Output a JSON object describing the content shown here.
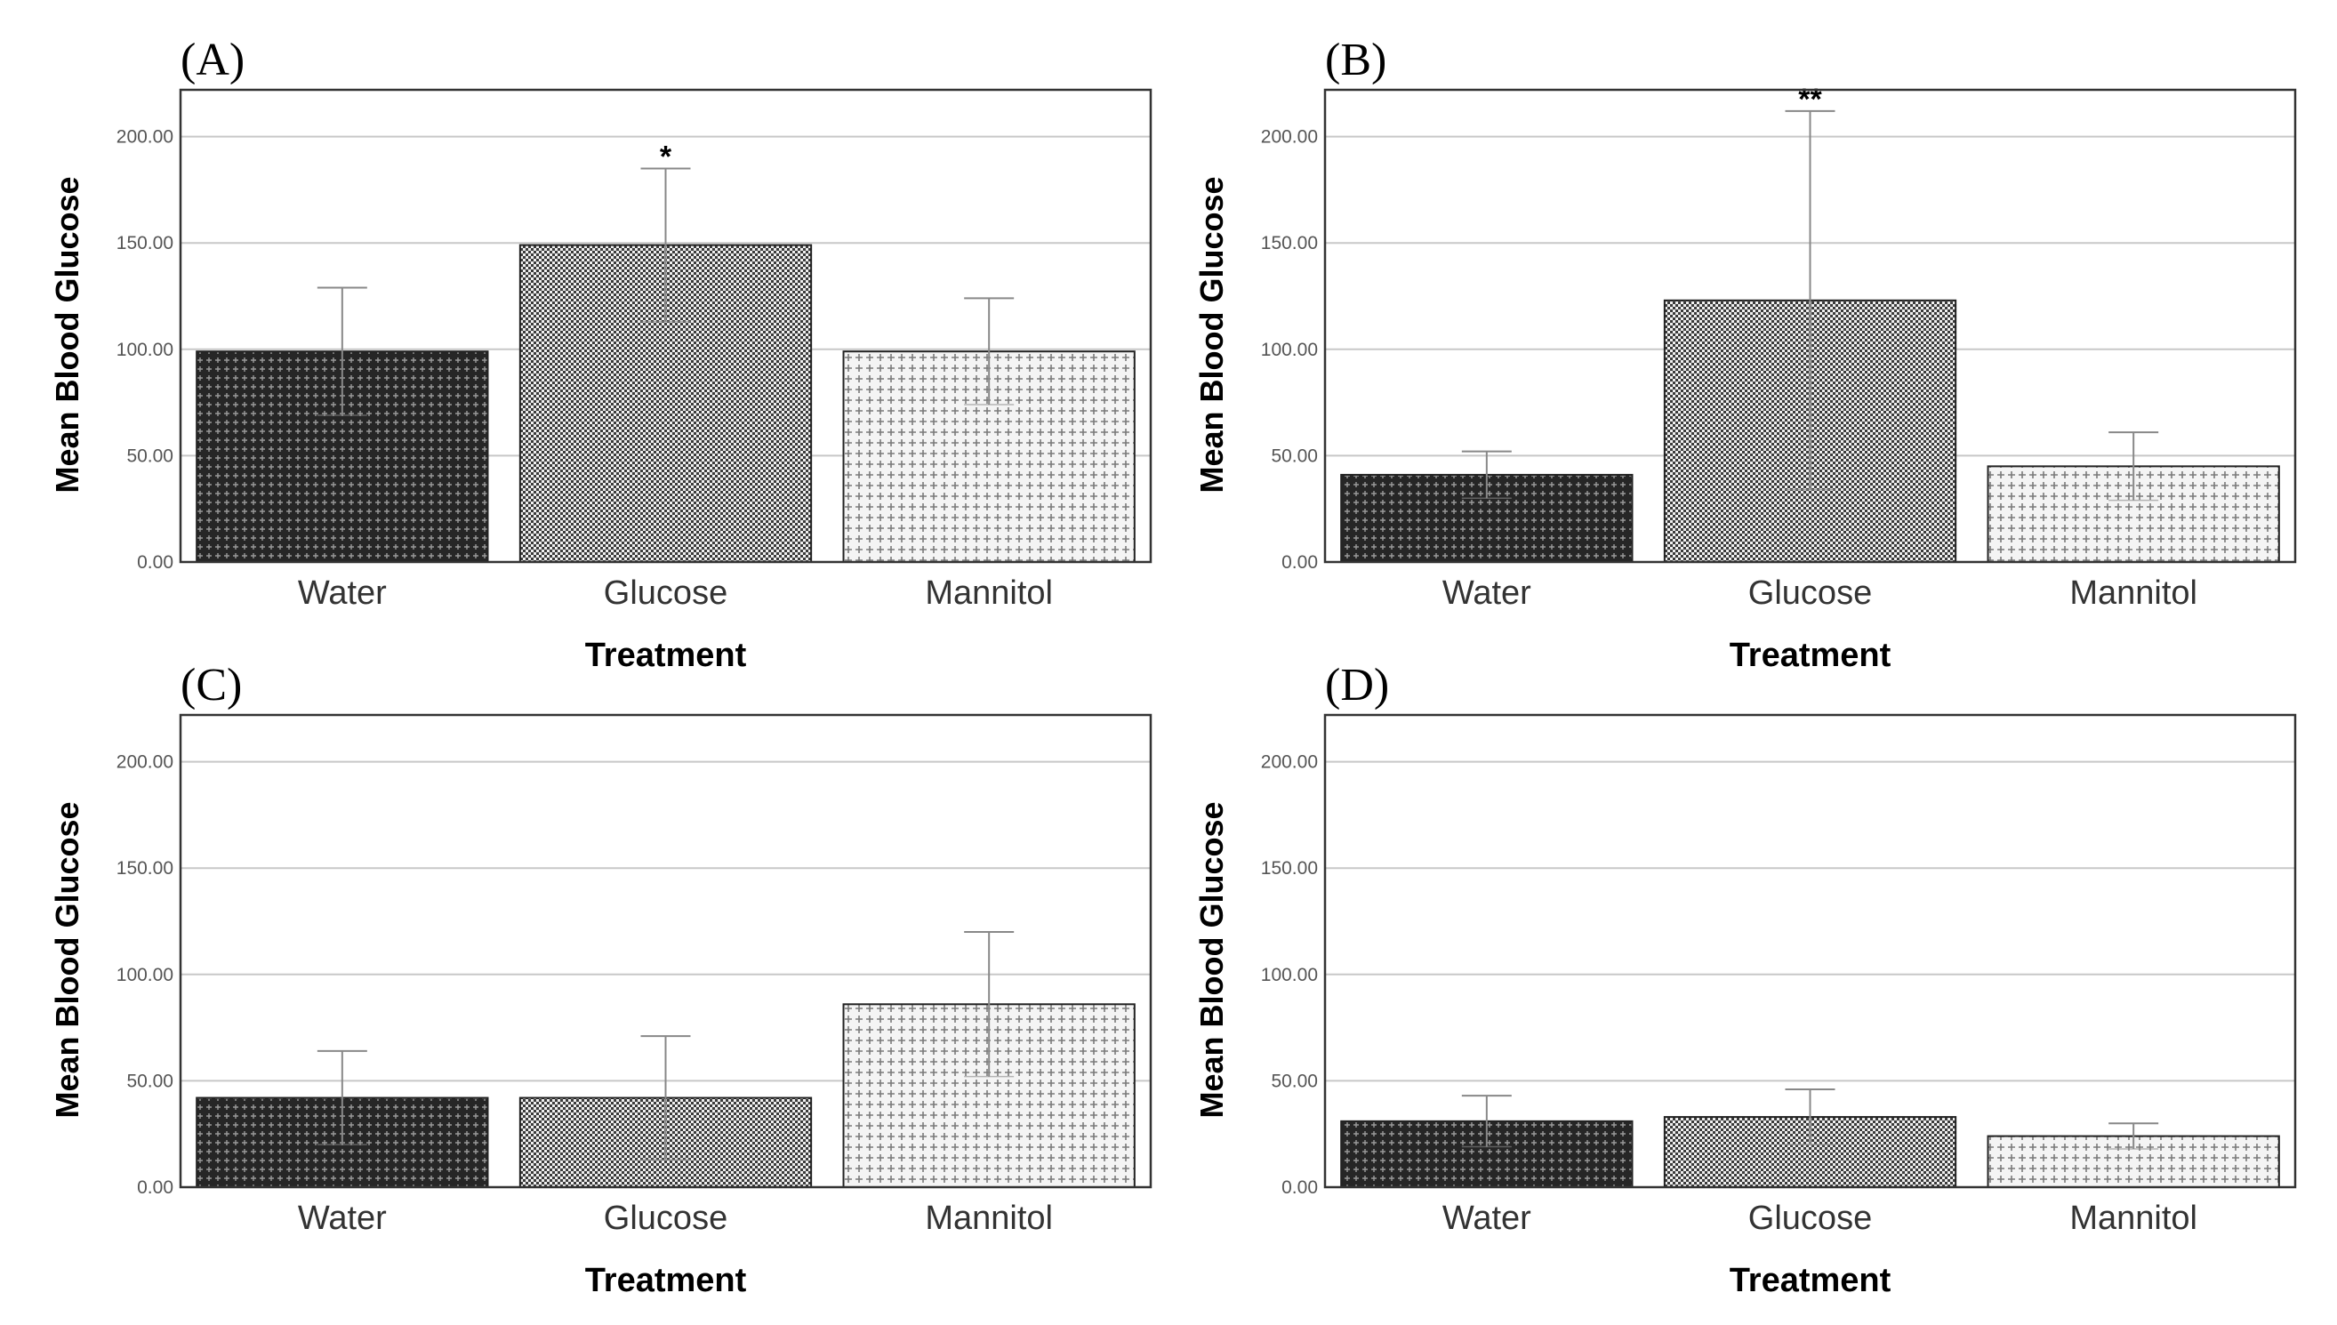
{
  "figure": {
    "colors": {
      "background": "#ffffff",
      "gridline": "#c8c8c8",
      "frame": "#333333",
      "errorbar": "#888888",
      "water_fill": "#2b2b2b",
      "glucose_fill": "#5e5e5e",
      "mannitol_fill": "#cfcfcf"
    },
    "patterns": {
      "water": "dark-crosshatch",
      "glucose": "medium-checker",
      "mannitol": "light-crosshatch"
    }
  },
  "chart_data": [
    {
      "panel": "(A)",
      "type": "bar",
      "categories": [
        "Water",
        "Glucose",
        "Mannitol"
      ],
      "values": [
        99,
        149,
        99
      ],
      "error_upper": [
        129,
        185,
        124
      ],
      "error_lower": [
        69,
        113,
        74
      ],
      "annotations": [
        "",
        "*",
        ""
      ],
      "xlabel": "Treatment",
      "ylabel": "Mean Blood Glucose",
      "yticks": [
        "0.00",
        "50.00",
        "100.00",
        "150.00",
        "200.00"
      ],
      "ylim": [
        0,
        222
      ],
      "grid": true
    },
    {
      "panel": "(B)",
      "type": "bar",
      "categories": [
        "Water",
        "Glucose",
        "Mannitol"
      ],
      "values": [
        41,
        123,
        45
      ],
      "error_upper": [
        52,
        212,
        61
      ],
      "error_lower": [
        30,
        34,
        29
      ],
      "annotations": [
        "",
        "**",
        ""
      ],
      "xlabel": "Treatment",
      "ylabel": "Mean Blood Glucose",
      "yticks": [
        "0.00",
        "50.00",
        "100.00",
        "150.00",
        "200.00"
      ],
      "ylim": [
        0,
        222
      ],
      "grid": true
    },
    {
      "panel": "(C)",
      "type": "bar",
      "categories": [
        "Water",
        "Glucose",
        "Mannitol"
      ],
      "values": [
        42,
        42,
        86
      ],
      "error_upper": [
        64,
        71,
        120
      ],
      "error_lower": [
        20,
        13,
        52
      ],
      "annotations": [
        "",
        "",
        ""
      ],
      "xlabel": "Treatment",
      "ylabel": "Mean Blood Glucose",
      "yticks": [
        "0.00",
        "50.00",
        "100.00",
        "150.00",
        "200.00"
      ],
      "ylim": [
        0,
        222
      ],
      "grid": true
    },
    {
      "panel": "(D)",
      "type": "bar",
      "categories": [
        "Water",
        "Glucose",
        "Mannitol"
      ],
      "values": [
        31,
        33,
        24
      ],
      "error_upper": [
        43,
        46,
        30
      ],
      "error_lower": [
        19,
        20,
        18
      ],
      "annotations": [
        "",
        "",
        ""
      ],
      "xlabel": "Treatment",
      "ylabel": "Mean Blood Glucose",
      "yticks": [
        "0.00",
        "50.00",
        "100.00",
        "150.00",
        "200.00"
      ],
      "ylim": [
        0,
        222
      ],
      "grid": true
    }
  ]
}
